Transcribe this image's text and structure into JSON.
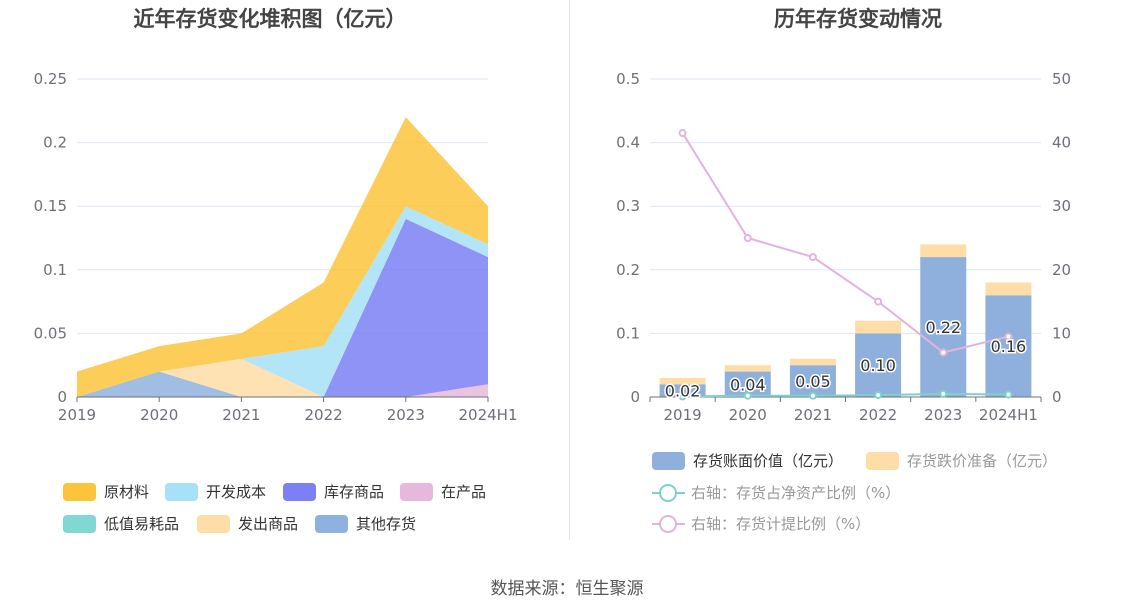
{
  "source": "数据来源：恒生聚源",
  "colors": {
    "grid": "#e0e6f1",
    "axis": "#6e7079",
    "tick": "#6e7079"
  },
  "chart_data": [
    {
      "type": "area",
      "title": "近年存货变化堆积图（亿元）",
      "stacked": true,
      "categories": [
        "2019",
        "2020",
        "2021",
        "2022",
        "2023",
        "2024H1"
      ],
      "ylim": [
        0,
        0.25
      ],
      "yticks": [
        "0",
        "0.05",
        "0.1",
        "0.15",
        "0.2",
        "0.25"
      ],
      "series": [
        {
          "name": "在产品",
          "color": "#e8b8dc",
          "values": [
            0,
            0,
            0,
            0,
            0,
            0.01
          ]
        },
        {
          "name": "其他存货",
          "color": "#8fb1df",
          "values": [
            0,
            0.02,
            0,
            0,
            0,
            0
          ]
        },
        {
          "name": "发出商品",
          "color": "#fedda7",
          "values": [
            0,
            0,
            0.03,
            0,
            0,
            0
          ]
        },
        {
          "name": "库存商品",
          "color": "#7b80f5",
          "values": [
            0,
            0,
            0,
            0,
            0.14,
            0.1
          ]
        },
        {
          "name": "低值易耗品",
          "color": "#81d8d2",
          "values": [
            0,
            0,
            0,
            0,
            0,
            0
          ]
        },
        {
          "name": "开发成本",
          "color": "#a6e1f8",
          "values": [
            0,
            0,
            0,
            0.04,
            0.01,
            0.01
          ]
        },
        {
          "name": "原材料",
          "color": "#fbc43b",
          "values": [
            0.02,
            0.02,
            0.02,
            0.05,
            0.07,
            0.03
          ]
        }
      ],
      "legend": {
        "placement": "bottom",
        "items": [
          {
            "name": "原材料",
            "color": "#fbc43b"
          },
          {
            "name": "开发成本",
            "color": "#a6e1f8"
          },
          {
            "name": "库存商品",
            "color": "#7b80f5"
          },
          {
            "name": "在产品",
            "color": "#e8b8dc"
          },
          {
            "name": "低值易耗品",
            "color": "#81d8d2"
          },
          {
            "name": "发出商品",
            "color": "#fedda7"
          },
          {
            "name": "其他存货",
            "color": "#8fb1df"
          }
        ]
      }
    },
    {
      "type": "bar",
      "title": "历年存货变动情况",
      "stacked": true,
      "categories": [
        "2019",
        "2020",
        "2021",
        "2022",
        "2023",
        "2024H1"
      ],
      "ylim": [
        0,
        0.5
      ],
      "yticks": [
        "0",
        "0.1",
        "0.2",
        "0.3",
        "0.4",
        "0.5"
      ],
      "y2lim": [
        0,
        50
      ],
      "y2ticks": [
        "0",
        "10",
        "20",
        "30",
        "40",
        "50"
      ],
      "series": [
        {
          "name": "存货账面价值（亿元）",
          "color": "#8fb0dc",
          "axis": "left",
          "values": [
            0.02,
            0.04,
            0.05,
            0.1,
            0.22,
            0.16
          ],
          "labels": [
            "0.02",
            "0.04",
            "0.05",
            "0.10",
            "0.22",
            "0.16"
          ]
        },
        {
          "name": "存货跌价准备（亿元）",
          "color": "#fedda7",
          "axis": "left",
          "values": [
            0.01,
            0.01,
            0.01,
            0.02,
            0.02,
            0.02
          ]
        },
        {
          "name": "右轴：存货占净资产比例（%）",
          "color": "#7fd0cd",
          "axis": "right",
          "type": "line",
          "values": [
            0.1,
            0.2,
            0.2,
            0.3,
            0.5,
            0.4
          ]
        },
        {
          "name": "右轴：存货计提比例（%）",
          "color": "#e2b3dc",
          "axis": "right",
          "type": "line",
          "values": [
            41.5,
            25,
            22,
            15,
            7,
            9.5
          ]
        }
      ],
      "legend": {
        "placement": "bottom",
        "items": [
          {
            "name": "存货账面价值（亿元）",
            "color": "#8fb0dc",
            "kind": "box"
          },
          {
            "name": "存货跌价准备（亿元）",
            "color": "#fedda7",
            "kind": "box"
          },
          {
            "name": "右轴：存货占净资产比例（%）",
            "color": "#7fd0cd",
            "kind": "line"
          },
          {
            "name": "右轴：存货计提比例（%）",
            "color": "#e2b3dc",
            "kind": "line"
          }
        ]
      }
    }
  ]
}
